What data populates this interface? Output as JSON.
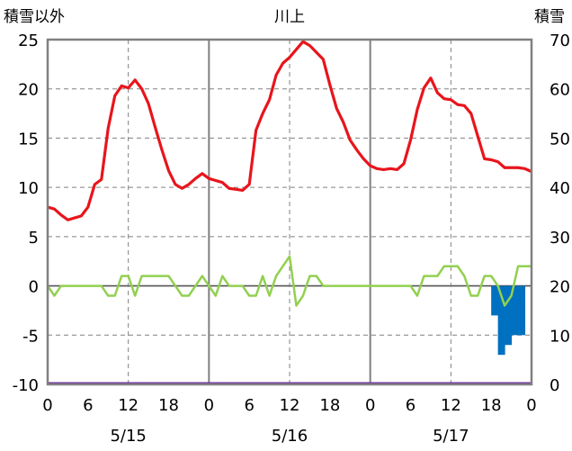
{
  "chart_data": {
    "type": "line",
    "title": "川上",
    "left_axis_label": "積雪以外",
    "right_axis_label": "積雪",
    "left_ylim": [
      -10,
      25
    ],
    "left_yticks": [
      "25",
      "20",
      "15",
      "10",
      "5",
      "0",
      "-5",
      "-10"
    ],
    "right_ylim": [
      0,
      70
    ],
    "right_yticks": [
      "70",
      "60",
      "50",
      "40",
      "30",
      "20",
      "10",
      "0"
    ],
    "x_hours_range": [
      0,
      72
    ],
    "x_tick_labels": [
      "0",
      "6",
      "12",
      "18",
      "0",
      "6",
      "12",
      "18",
      "0",
      "6",
      "12",
      "18",
      "0"
    ],
    "date_labels": [
      "5/15",
      "5/16",
      "5/17"
    ],
    "grid": true,
    "colors": {
      "temperature": "#e8151c",
      "wind": "#92d050",
      "snow_depth": "#0070c0",
      "baseline": "#7030a0",
      "axis": "#808080",
      "grid": "#808080"
    },
    "series": [
      {
        "type": "line",
        "axis": "left",
        "x": [
          0,
          1,
          2,
          3,
          4,
          5,
          6,
          7,
          8,
          9,
          10,
          11,
          12,
          13,
          14,
          15,
          16,
          17,
          18,
          19,
          20,
          21,
          22,
          23,
          24,
          25,
          26,
          27,
          28,
          29,
          30,
          31,
          32,
          33,
          34,
          35,
          36,
          37,
          38,
          39,
          40,
          41,
          42,
          43,
          44,
          45,
          46,
          47,
          48,
          49,
          50,
          51,
          52,
          53,
          54,
          55,
          56,
          57,
          58,
          59,
          60,
          61,
          62,
          63,
          64,
          65,
          66,
          67,
          68,
          69,
          70,
          71,
          72
        ],
        "values": [
          8.0,
          7.8,
          7.2,
          6.7,
          6.9,
          7.1,
          8.0,
          10.3,
          10.8,
          16.0,
          19.3,
          20.3,
          20.1,
          20.9,
          20.0,
          18.5,
          16.1,
          13.8,
          11.7,
          10.3,
          9.9,
          10.3,
          10.9,
          11.4,
          10.9,
          10.7,
          10.5,
          9.9,
          9.8,
          9.7,
          10.3,
          15.8,
          17.5,
          18.9,
          21.4,
          22.6,
          23.2,
          24.0,
          24.8,
          24.4,
          23.7,
          23.0,
          20.4,
          18.0,
          16.6,
          14.8,
          13.8,
          12.9,
          12.2,
          11.9,
          11.8,
          11.9,
          11.8,
          12.4,
          14.8,
          17.9,
          20.1,
          21.1,
          19.6,
          19.0,
          18.9,
          18.4,
          18.3,
          17.5,
          15.2,
          12.9,
          12.8,
          12.6,
          12.0,
          12.0,
          12.0,
          11.9,
          11.6
        ]
      },
      {
        "type": "line",
        "axis": "left",
        "x": [
          0,
          1,
          2,
          3,
          4,
          5,
          6,
          7,
          8,
          9,
          10,
          11,
          12,
          13,
          14,
          15,
          16,
          17,
          18,
          19,
          20,
          21,
          22,
          23,
          24,
          25,
          26,
          27,
          28,
          29,
          30,
          31,
          32,
          33,
          34,
          35,
          36,
          37,
          38,
          39,
          40,
          41,
          42,
          43,
          44,
          45,
          46,
          47,
          48,
          49,
          50,
          51,
          52,
          53,
          54,
          55,
          56,
          57,
          58,
          59,
          60,
          61,
          62,
          63,
          64,
          65,
          66,
          67,
          68,
          69,
          70,
          71,
          72
        ],
        "values": [
          0,
          -1,
          0,
          0,
          0,
          0,
          0,
          0,
          0,
          -1,
          -1,
          1,
          1,
          -1,
          1,
          1,
          1,
          1,
          1,
          0,
          -1,
          -1,
          0,
          1,
          0,
          -1,
          1,
          0,
          0,
          0,
          -1,
          -1,
          1,
          -1,
          1,
          2,
          3,
          -2,
          -1,
          1,
          1,
          0,
          0,
          0,
          0,
          0,
          0,
          0,
          0,
          0,
          0,
          0,
          0,
          0,
          0,
          -1,
          1,
          1,
          1,
          2,
          2,
          2,
          1,
          -1,
          -1,
          1,
          1,
          0,
          -2,
          -1,
          2,
          2,
          2
        ]
      },
      {
        "type": "bar",
        "axis": "right",
        "x": [
          67,
          68,
          69,
          70,
          71
        ],
        "values": [
          14,
          6,
          8,
          10,
          10
        ]
      }
    ]
  }
}
